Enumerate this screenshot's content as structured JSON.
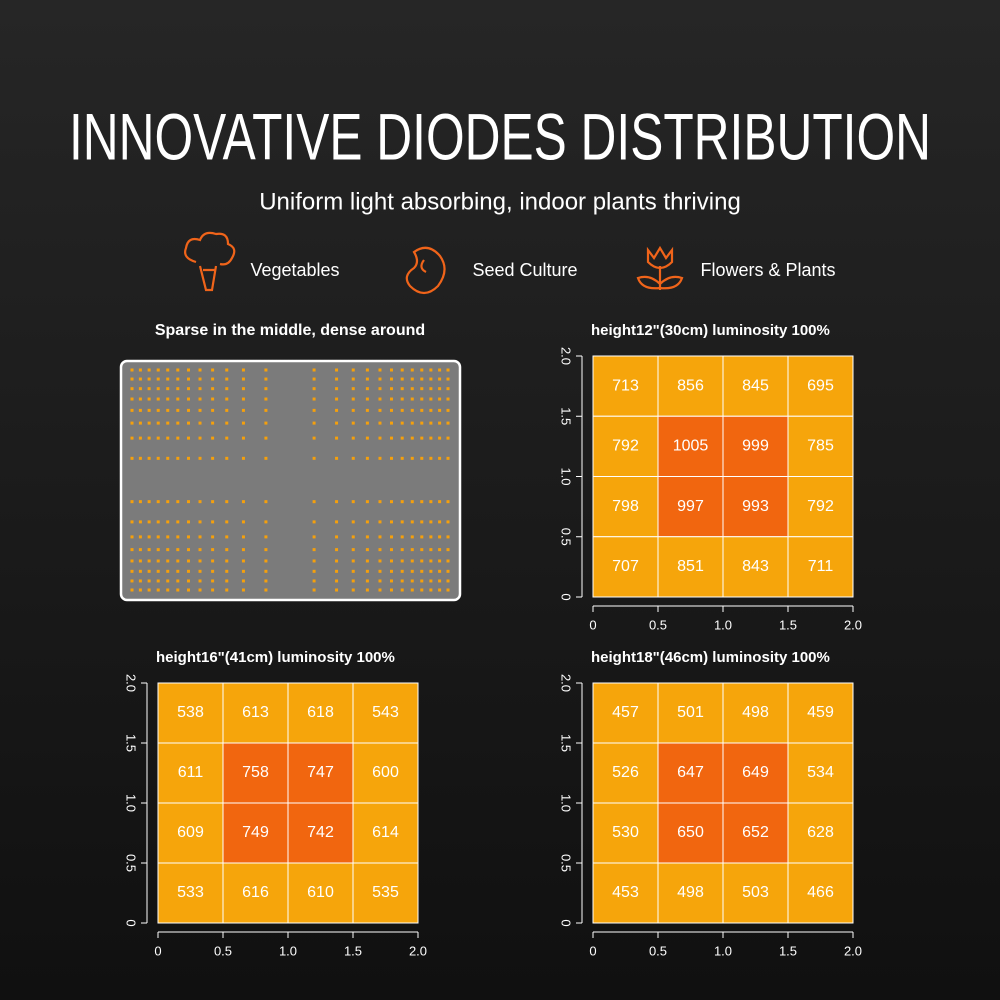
{
  "header": {
    "title": "INNOVATIVE DIODES DISTRIBUTION",
    "subtitle": "Uniform light absorbing, indoor plants thriving"
  },
  "features": [
    "Vegetables",
    "Seed Culture",
    "Flowers & Plants"
  ],
  "diode_panel": {
    "title": "Sparse in the middle, dense around"
  },
  "chart_data": [
    {
      "type": "heatmap",
      "title": "height12\"(30cm)  luminosity 100%",
      "values": [
        [
          713,
          856,
          845,
          695
        ],
        [
          792,
          1005,
          999,
          785
        ],
        [
          798,
          997,
          993,
          792
        ],
        [
          707,
          851,
          843,
          711
        ]
      ],
      "colors": {
        "low": "#f6a50b",
        "high": "#f1660f"
      },
      "xlim": [
        0,
        2
      ],
      "ylim": [
        0,
        2
      ],
      "xticks": [
        0,
        0.5,
        {
          "value": 1,
          "label": "1.0"
        },
        1.5,
        {
          "value": 2,
          "label": "2.0"
        }
      ],
      "yticks": [
        0,
        0.5,
        {
          "value": 1,
          "label": "1.0"
        },
        1.5,
        {
          "value": 2,
          "label": "2.0"
        }
      ]
    },
    {
      "type": "heatmap",
      "title": "height16\"(41cm)  luminosity 100%",
      "values": [
        [
          538,
          613,
          618,
          543
        ],
        [
          611,
          758,
          747,
          600
        ],
        [
          609,
          749,
          742,
          614
        ],
        [
          533,
          616,
          610,
          535
        ]
      ],
      "colors": {
        "low": "#f6a50b",
        "high": "#f1660f"
      },
      "xlim": [
        0,
        2
      ],
      "ylim": [
        0,
        2
      ],
      "xticks": [
        0,
        0.5,
        {
          "value": 1,
          "label": "1.0"
        },
        1.5,
        {
          "value": 2,
          "label": "2.0"
        }
      ],
      "yticks": [
        0,
        0.5,
        {
          "value": 1,
          "label": "1.0"
        },
        1.5,
        {
          "value": 2,
          "label": "2.0"
        }
      ]
    },
    {
      "type": "heatmap",
      "title": "height18\"(46cm)  luminosity 100%",
      "values": [
        [
          457,
          501,
          498,
          459
        ],
        [
          526,
          647,
          649,
          534
        ],
        [
          530,
          650,
          652,
          628
        ],
        [
          453,
          498,
          503,
          466
        ]
      ],
      "colors": {
        "low": "#f6a50b",
        "high": "#f1660f"
      },
      "xlim": [
        0,
        2
      ],
      "ylim": [
        0,
        2
      ],
      "xticks": [
        0,
        0.5,
        {
          "value": 1,
          "label": "1.0"
        },
        1.5,
        {
          "value": 2,
          "label": "2.0"
        }
      ],
      "yticks": [
        0,
        0.5,
        {
          "value": 1,
          "label": "1.0"
        },
        1.5,
        {
          "value": 2,
          "label": "2.0"
        }
      ]
    }
  ]
}
